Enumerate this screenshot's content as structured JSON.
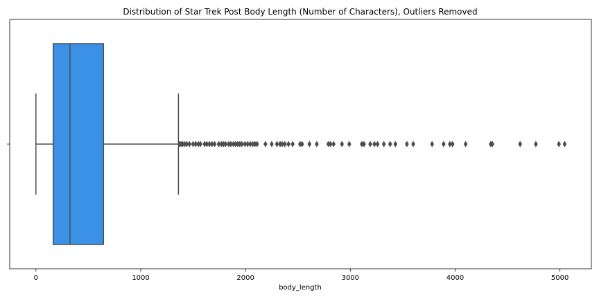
{
  "chart_data": {
    "type": "boxplot",
    "orientation": "horizontal",
    "title": "Distribution of Star Trek Post Body Length (Number of Characters), Outliers Removed",
    "xlabel": "body_length",
    "ylabel": "",
    "xlim": [
      -250,
      5300
    ],
    "xticks": [
      0,
      1000,
      2000,
      3000,
      4000,
      5000
    ],
    "xtick_labels": [
      "0",
      "1000",
      "2000",
      "3000",
      "4000",
      "5000"
    ],
    "grid": false,
    "box": {
      "whisker_low": 0,
      "q1": 165,
      "median": 325,
      "q3": 645,
      "whisker_high": 1360
    },
    "outliers": [
      1370,
      1385,
      1400,
      1420,
      1440,
      1465,
      1500,
      1525,
      1550,
      1570,
      1610,
      1630,
      1655,
      1680,
      1705,
      1745,
      1770,
      1790,
      1810,
      1840,
      1860,
      1885,
      1905,
      1925,
      1945,
      1965,
      1995,
      2020,
      2045,
      2070,
      2090,
      2110,
      2190,
      2250,
      2300,
      2330,
      2350,
      2375,
      2410,
      2450,
      2520,
      2540,
      2610,
      2680,
      2790,
      2810,
      2840,
      2920,
      2990,
      3110,
      3130,
      3190,
      3230,
      3260,
      3320,
      3380,
      3430,
      3540,
      3600,
      3780,
      3890,
      3950,
      3975,
      4100,
      4340,
      4355,
      4620,
      4770,
      4990,
      5045
    ],
    "colors": {
      "box_fill": "#3a91e6",
      "line": "#4d4d4d",
      "axes": "#000000"
    }
  }
}
